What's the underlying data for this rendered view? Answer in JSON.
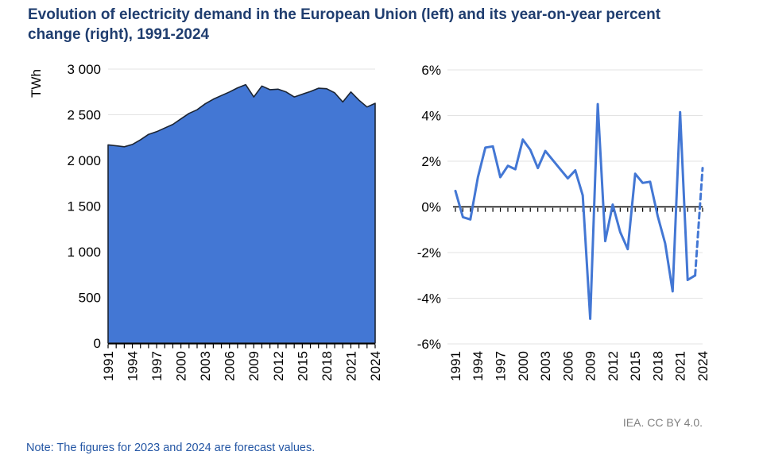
{
  "title": "Evolution of electricity demand in the European Union (left) and its year-on-year percent change (right), 1991-2024",
  "note": "Note: The figures for 2023 and 2024 are forecast values.",
  "credit": "IEA. CC BY 4.0.",
  "colors": {
    "title_text": "#1F3D6F",
    "note_text": "#2456A4",
    "credit_text": "#7F7F7F",
    "series_blue": "#4377D4",
    "area_outline": "#1C2533",
    "axis_black": "#000000",
    "gridline_gray": "#E3E3E3"
  },
  "chart_data": [
    {
      "panel": "left",
      "type": "area",
      "ylabel": "TWh",
      "ylim": [
        0,
        3000
      ],
      "yticks": [
        0,
        500,
        1000,
        1500,
        2000,
        2500,
        3000
      ],
      "ytick_labels": [
        "0",
        "500",
        "1 000",
        "1 500",
        "2 000",
        "2 500",
        "3 000"
      ],
      "xtick_years": [
        1991,
        1994,
        1997,
        2000,
        2003,
        2006,
        2009,
        2012,
        2015,
        2018,
        2021,
        2024
      ],
      "x": [
        1991,
        1992,
        1993,
        1994,
        1995,
        1996,
        1997,
        1998,
        1999,
        2000,
        2001,
        2002,
        2003,
        2004,
        2005,
        2006,
        2007,
        2008,
        2009,
        2010,
        2011,
        2012,
        2013,
        2014,
        2015,
        2016,
        2017,
        2018,
        2019,
        2020,
        2021,
        2022,
        2023,
        2024
      ],
      "values": [
        2170,
        2160,
        2150,
        2175,
        2225,
        2285,
        2315,
        2355,
        2395,
        2455,
        2515,
        2555,
        2620,
        2670,
        2710,
        2750,
        2795,
        2830,
        2695,
        2815,
        2775,
        2780,
        2750,
        2695,
        2725,
        2755,
        2790,
        2785,
        2740,
        2640,
        2750,
        2660,
        2585,
        2625
      ],
      "forecast_years": [
        2023,
        2024
      ],
      "grid": true,
      "legend": "none"
    },
    {
      "panel": "right",
      "type": "line",
      "unit": "%",
      "ylim": [
        -6,
        6
      ],
      "yticks": [
        6,
        4,
        2,
        0,
        -2,
        -4,
        -6
      ],
      "ytick_labels": [
        "6%",
        "4%",
        "2%",
        "0%",
        "-2%",
        "-4%",
        "-6%"
      ],
      "xtick_years": [
        1991,
        1994,
        1997,
        2000,
        2003,
        2006,
        2009,
        2012,
        2015,
        2018,
        2021,
        2024
      ],
      "x": [
        1991,
        1992,
        1993,
        1994,
        1995,
        1996,
        1997,
        1998,
        1999,
        2000,
        2001,
        2002,
        2003,
        2004,
        2005,
        2006,
        2007,
        2008,
        2009,
        2010,
        2011,
        2012,
        2013,
        2014,
        2015,
        2016,
        2017,
        2018,
        2019,
        2020,
        2021,
        2022,
        2023,
        2024
      ],
      "values": [
        0.7,
        -0.45,
        -0.55,
        1.3,
        2.6,
        2.65,
        1.3,
        1.8,
        1.65,
        2.95,
        2.5,
        1.7,
        2.45,
        2.05,
        1.65,
        1.25,
        1.6,
        0.5,
        -4.9,
        4.5,
        -1.5,
        0.1,
        -1.1,
        -1.85,
        1.45,
        1.05,
        1.1,
        -0.4,
        -1.6,
        -3.7,
        4.15,
        -3.2,
        -3.0,
        1.7
      ],
      "dashed_from": 2023,
      "forecast_years": [
        2023,
        2024
      ],
      "grid": true,
      "legend": "none"
    }
  ]
}
